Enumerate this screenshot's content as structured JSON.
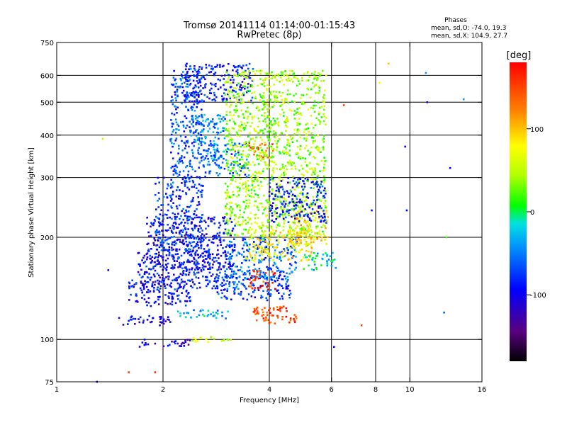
{
  "chart_data": {
    "type": "scatter",
    "title": "Tromsø 20141114 01:14:00-01:15:43",
    "subtitle": "RwPretec (8p)",
    "xlabel": "Frequency [MHz]",
    "ylabel": "Stationary phase Virtual Height [km]",
    "x_scale": "log",
    "y_scale": "log",
    "xlim": [
      1,
      16
    ],
    "ylim": [
      75,
      750
    ],
    "x_ticks": [
      1,
      2,
      4,
      6,
      8,
      10,
      16
    ],
    "x_tick_labels": [
      "1",
      "2",
      "4",
      "6",
      "8",
      "10",
      "16"
    ],
    "x_grid": [
      2,
      4,
      6,
      8,
      10
    ],
    "y_ticks": [
      75,
      100,
      200,
      300,
      400,
      500,
      600,
      750
    ],
    "y_tick_labels": [
      "75",
      "100",
      "200",
      "300",
      "400",
      "500",
      "600",
      "750"
    ],
    "y_grid": [
      100,
      200,
      300,
      400,
      500,
      600
    ],
    "grid": true,
    "legend": {
      "title": "Phases",
      "lines": [
        "mean, sd,O: -74.0, 19.3",
        "mean, sd,X: 104.9, 27.7"
      ],
      "placement": "top-right"
    },
    "colorbar": {
      "unit": "[deg]",
      "range": [
        -180,
        180
      ],
      "ticks": [
        -100,
        0,
        100
      ],
      "tick_labels": [
        "-100",
        "0",
        "100"
      ],
      "palette": "rainbow",
      "placement": "right"
    },
    "series": [
      {
        "clusters": [
          {
            "x": [
              1.5,
              2.1
            ],
            "y": [
              110,
              118
            ],
            "phase": -100
          },
          {
            "x": [
              1.6,
              2.4
            ],
            "y": [
              125,
              150
            ],
            "phase": -95
          },
          {
            "x": [
              1.7,
              2.8
            ],
            "y": [
              140,
              180
            ],
            "phase": -90
          },
          {
            "x": [
              1.8,
              3.2
            ],
            "y": [
              160,
              230
            ],
            "phase": -92
          },
          {
            "x": [
              1.9,
              2.6
            ],
            "y": [
              180,
              300
            ],
            "phase": -80
          },
          {
            "x": [
              2.1,
              2.6
            ],
            "y": [
              300,
              640
            ],
            "phase": -70
          },
          {
            "x": [
              2.4,
              3.0
            ],
            "y": [
              340,
              460
            ],
            "phase": -45
          },
          {
            "x": [
              2.6,
              3.5
            ],
            "y": [
              300,
              380
            ],
            "phase": -55
          },
          {
            "x": [
              2.3,
              3.6
            ],
            "y": [
              500,
              650
            ],
            "phase": -90
          },
          {
            "x": [
              2.8,
              4.6
            ],
            "y": [
              130,
              160
            ],
            "phase": -75
          },
          {
            "x": [
              3.0,
              4.8
            ],
            "y": [
              150,
              200
            ],
            "phase": -60
          },
          {
            "x": [
              3.4,
              5.3
            ],
            "y": [
              170,
              210
            ],
            "phase": 80
          },
          {
            "x": [
              3.6,
              4.8
            ],
            "y": [
              110,
              125
            ],
            "phase": 150
          },
          {
            "x": [
              3.5,
              4.2
            ],
            "y": [
              140,
              160
            ],
            "phase": 160
          },
          {
            "x": [
              3.5,
              4.1
            ],
            "y": [
              340,
              380
            ],
            "phase": 140
          },
          {
            "x": [
              3.0,
              5.8
            ],
            "y": [
              200,
              620
            ],
            "phase": 40
          },
          {
            "x": [
              4.5,
              5.9
            ],
            "y": [
              190,
              240
            ],
            "phase": 90
          },
          {
            "x": [
              4.0,
              5.8
            ],
            "y": [
              220,
              300
            ],
            "phase": -85
          },
          {
            "x": [
              5.0,
              6.2
            ],
            "y": [
              160,
              180
            ],
            "phase": -15
          },
          {
            "x": [
              2.2,
              3.1
            ],
            "y": [
              115,
              122
            ],
            "phase": -30
          },
          {
            "x": [
              1.7,
              2.4
            ],
            "y": [
              95,
              100
            ],
            "phase": -110
          },
          {
            "x": [
              2.4,
              3.2
            ],
            "y": [
              98,
              102
            ],
            "phase": 60
          }
        ],
        "isolated": [
          {
            "x": 1.3,
            "y": 75,
            "phase": -100
          },
          {
            "x": 1.35,
            "y": 390,
            "phase": 50
          },
          {
            "x": 1.4,
            "y": 160,
            "phase": -100
          },
          {
            "x": 1.6,
            "y": 80,
            "phase": 150
          },
          {
            "x": 1.9,
            "y": 80,
            "phase": 160
          },
          {
            "x": 6.1,
            "y": 95,
            "phase": -100
          },
          {
            "x": 6.5,
            "y": 490,
            "phase": 150
          },
          {
            "x": 7.3,
            "y": 110,
            "phase": 150
          },
          {
            "x": 7.8,
            "y": 240,
            "phase": -90
          },
          {
            "x": 8.2,
            "y": 570,
            "phase": 80
          },
          {
            "x": 8.7,
            "y": 650,
            "phase": 100
          },
          {
            "x": 9.7,
            "y": 370,
            "phase": -100
          },
          {
            "x": 9.8,
            "y": 240,
            "phase": -90
          },
          {
            "x": 11.1,
            "y": 610,
            "phase": -40
          },
          {
            "x": 11.2,
            "y": 500,
            "phase": -100
          },
          {
            "x": 12.7,
            "y": 200,
            "phase": 20
          },
          {
            "x": 13.0,
            "y": 320,
            "phase": -90
          },
          {
            "x": 14.2,
            "y": 510,
            "phase": -40
          },
          {
            "x": 12.5,
            "y": 120,
            "phase": -60
          }
        ]
      }
    ]
  }
}
